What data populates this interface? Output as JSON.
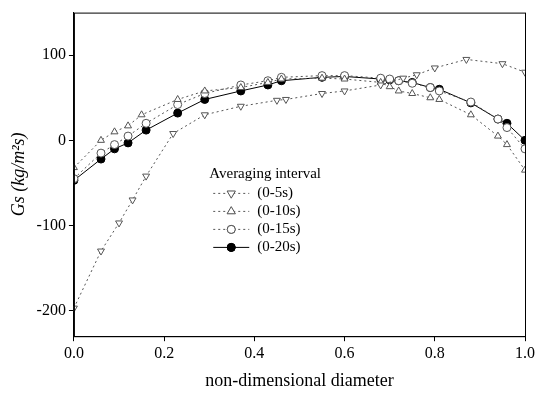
{
  "chart_data": {
    "type": "line",
    "x_label": "non-dimensional diameter",
    "y_label": "Gs (kg/m²s)",
    "legend_title": "Averaging interval",
    "legend": "center",
    "grid": false,
    "xlim": [
      0,
      1
    ],
    "xticks": [
      {
        "value": 0,
        "label": "0.0"
      },
      0.2,
      0.4,
      0.6,
      0.8,
      {
        "value": 1,
        "label": "1.0"
      }
    ],
    "ylim": [
      -230,
      150
    ],
    "yticks": [
      -200,
      -100,
      0,
      100
    ],
    "series": [
      {
        "name": "(0-5s)",
        "color": "#555555",
        "marker": "triangle_down_open",
        "line_style": "dotted",
        "x": [
          0,
          0.06,
          0.1,
          0.13,
          0.16,
          0.22,
          0.29,
          0.37,
          0.45,
          0.47,
          0.55,
          0.6,
          0.68,
          0.73,
          0.76,
          0.8,
          0.87,
          0.95,
          1.0
        ],
        "values": [
          -197,
          -130,
          -97,
          -70,
          -42,
          8,
          30,
          40,
          47,
          48,
          55,
          58,
          65,
          73,
          77,
          85,
          95,
          90,
          80
        ]
      },
      {
        "name": "(0-10s)",
        "color": "#555555",
        "marker": "triangle_open",
        "line_style": "dotted",
        "x": [
          0,
          0.06,
          0.09,
          0.12,
          0.15,
          0.23,
          0.29,
          0.37,
          0.43,
          0.46,
          0.55,
          0.6,
          0.68,
          0.7,
          0.72,
          0.75,
          0.79,
          0.81,
          0.88,
          0.94,
          0.96,
          1.0
        ],
        "values": [
          -32,
          0,
          10,
          17,
          30,
          48,
          58,
          62,
          68,
          72,
          73,
          72,
          68,
          63,
          58,
          55,
          50,
          48,
          30,
          5,
          -5,
          -35
        ]
      },
      {
        "name": "(0-15s)",
        "color": "#555555",
        "marker": "circle_open",
        "line_style": "dotted",
        "x": [
          0,
          0.06,
          0.09,
          0.12,
          0.16,
          0.23,
          0.29,
          0.37,
          0.43,
          0.46,
          0.55,
          0.6,
          0.68,
          0.7,
          0.72,
          0.75,
          0.79,
          0.81,
          0.88,
          0.94,
          0.96,
          1.0
        ],
        "values": [
          -45,
          -15,
          -5,
          5,
          20,
          42,
          55,
          65,
          70,
          74,
          76,
          76,
          73,
          72,
          70,
          67,
          62,
          58,
          45,
          25,
          15,
          -10
        ]
      },
      {
        "name": "(0-20s)",
        "color": "#000000",
        "marker": "circle",
        "line_style": "solid",
        "x": [
          0,
          0.06,
          0.09,
          0.12,
          0.16,
          0.23,
          0.29,
          0.37,
          0.43,
          0.46,
          0.55,
          0.6,
          0.68,
          0.7,
          0.72,
          0.75,
          0.79,
          0.81,
          0.88,
          0.94,
          0.96,
          1.0
        ],
        "values": [
          -47,
          -22,
          -10,
          -3,
          12,
          32,
          48,
          58,
          65,
          70,
          74,
          75,
          72,
          71,
          70,
          68,
          62,
          60,
          44,
          25,
          20,
          0
        ]
      }
    ]
  }
}
